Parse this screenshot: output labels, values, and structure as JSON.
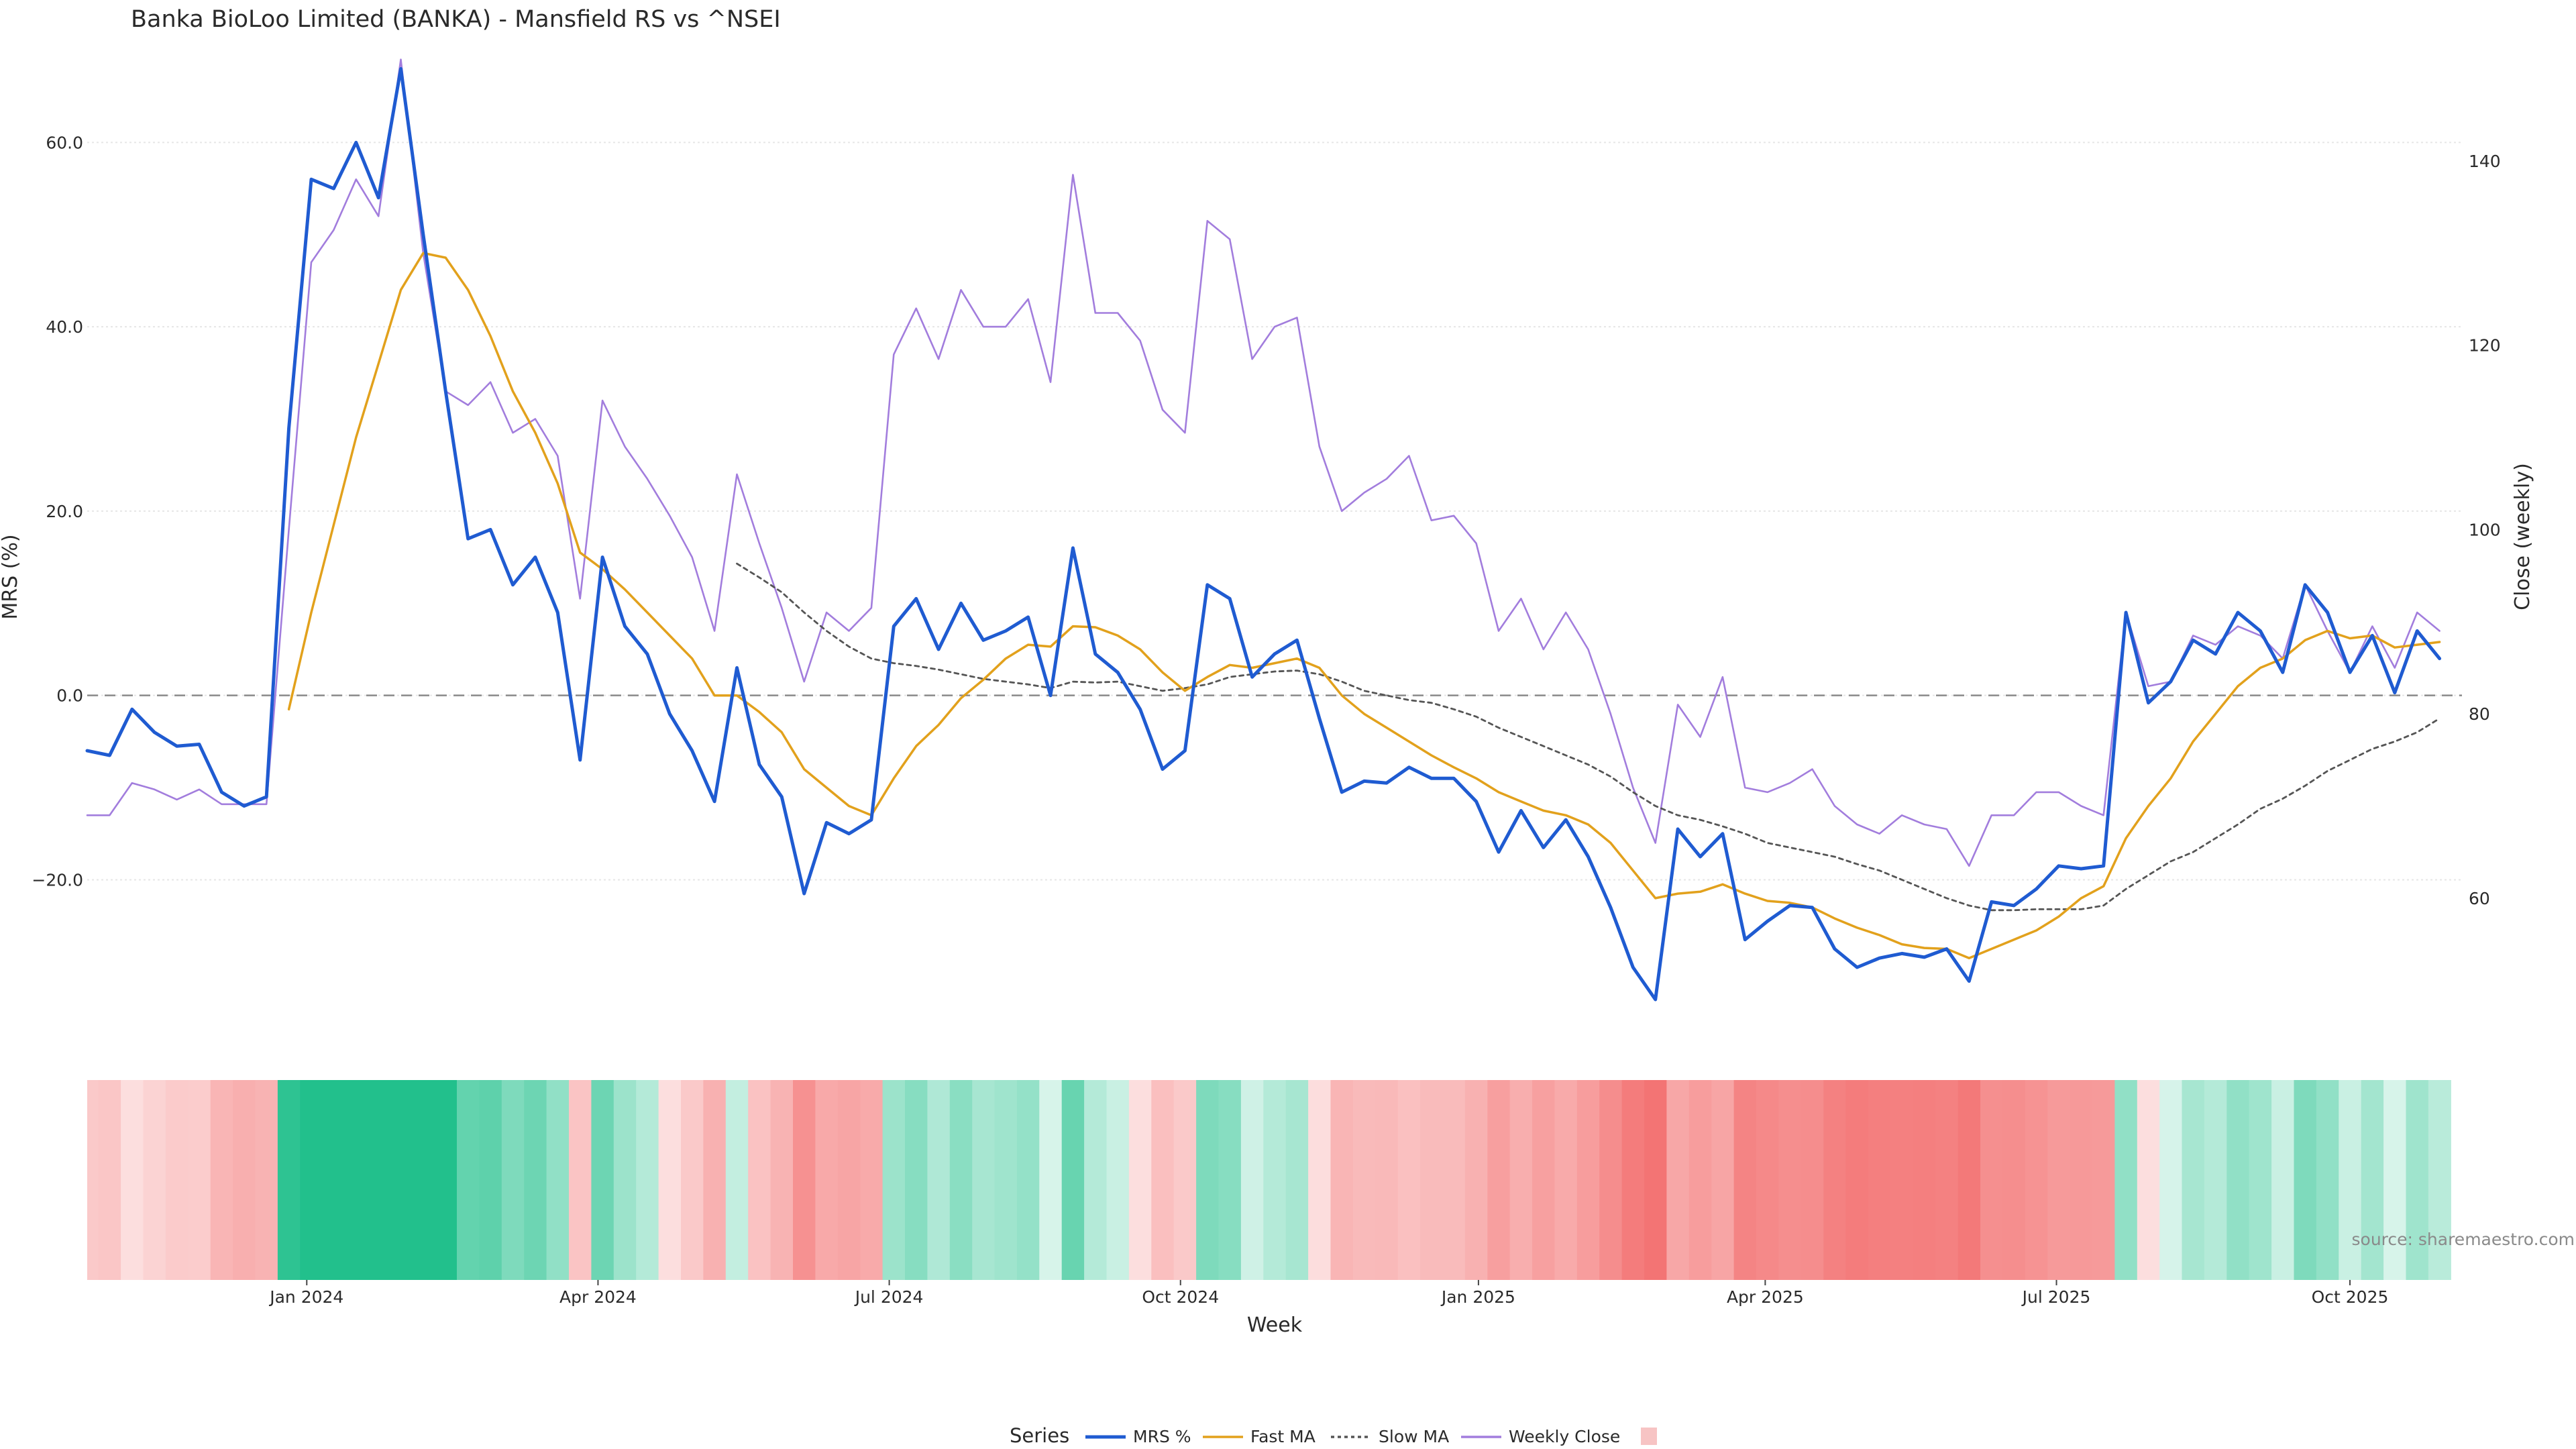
{
  "chart_data": {
    "type": "line",
    "title": "Banka BioLoo Limited (BANKA) - Mansfield RS vs ^NSEI",
    "ylabel": "MRS (%)",
    "y2label": "Close (weekly)",
    "xlabel": "Week",
    "ylim": [
      -37,
      70
    ],
    "y2lim": [
      45,
      152
    ],
    "yticks": [
      60,
      40,
      20,
      0,
      -20
    ],
    "ytick_labels": [
      "60.0",
      "40.0",
      "20.0",
      "0.0",
      "−20.0"
    ],
    "y2ticks": [
      140,
      120,
      100,
      80,
      60
    ],
    "y2tick_labels": [
      "140",
      "120",
      "100",
      "80",
      "60"
    ],
    "x_range": [
      0,
      106
    ],
    "xticks": [
      {
        "label": "Jan 2024",
        "x": 9.8
      },
      {
        "label": "Apr 2024",
        "x": 22.8
      },
      {
        "label": "Jul 2024",
        "x": 35.8
      },
      {
        "label": "Oct 2024",
        "x": 48.8
      },
      {
        "label": "Jan 2025",
        "x": 62.1
      },
      {
        "label": "Apr 2025",
        "x": 74.9
      },
      {
        "label": "Jul 2025",
        "x": 87.9
      },
      {
        "label": "Oct 2025",
        "x": 101.0
      }
    ],
    "x": [
      0,
      1,
      2,
      3,
      4,
      5,
      6,
      7,
      8,
      9,
      10,
      11,
      12,
      13,
      14,
      15,
      16,
      17,
      18,
      19,
      20,
      21,
      22,
      23,
      24,
      25,
      26,
      27,
      28,
      29,
      30,
      31,
      32,
      33,
      34,
      35,
      36,
      37,
      38,
      39,
      40,
      41,
      42,
      43,
      44,
      45,
      46,
      47,
      48,
      49,
      50,
      51,
      52,
      53,
      54,
      55,
      56,
      57,
      58,
      59,
      60,
      61,
      62,
      63,
      64,
      65,
      66,
      67,
      68,
      69,
      70,
      71,
      72,
      73,
      74,
      75,
      76,
      77,
      78,
      79,
      80,
      81,
      82,
      83,
      84,
      85,
      86,
      87,
      88,
      89,
      90,
      91,
      92,
      93,
      94,
      95,
      96,
      97,
      98,
      99,
      100,
      101,
      102,
      103,
      104,
      105
    ],
    "reference_line": 0,
    "series": [
      {
        "name": "MRS %",
        "color": "#1f5bd1",
        "axis": "left",
        "style": "solid",
        "values": [
          -6,
          -6.5,
          -1.5,
          -4,
          -5.5,
          -5.3,
          -10.5,
          -12,
          -11,
          29,
          56,
          55,
          60,
          54,
          68,
          50,
          33,
          17,
          18,
          12,
          15,
          9,
          -7,
          15,
          7.5,
          4.5,
          -2,
          -6,
          -11.5,
          3,
          -7.5,
          -11,
          -21.5,
          -13.8,
          -15,
          -13.5,
          7.5,
          10.5,
          5,
          10,
          6,
          7,
          8.5,
          0,
          16,
          4.5,
          2.5,
          -1.5,
          -8,
          -6,
          12,
          10.5,
          2,
          4.5,
          6,
          -2.5,
          -10.5,
          -9.3,
          -9.5,
          -7.8,
          -9,
          -9,
          -11.5,
          -17,
          -12.5,
          -16.5,
          -13.5,
          -17.5,
          -23,
          -29.5,
          -33,
          -14.5,
          -17.5,
          -15,
          -26.5,
          -24.5,
          -22.8,
          -23,
          -27.5,
          -29.5,
          -28.5,
          -28,
          -28.4,
          -27.5,
          -31,
          -22.4,
          -22.8,
          -21,
          -18.5,
          -18.8,
          -18.5,
          9,
          -0.8,
          1.5,
          6,
          4.5,
          9,
          7,
          2.5,
          12,
          9,
          2.5,
          6.5,
          0.3,
          7,
          4
        ]
      },
      {
        "name": "Fast MA",
        "color": "#e2a11c",
        "axis": "left",
        "style": "solid",
        "values": [
          null,
          null,
          null,
          null,
          null,
          null,
          null,
          null,
          null,
          -1.5,
          9,
          18.5,
          28,
          36,
          44,
          48,
          47.5,
          44,
          39,
          33,
          28.5,
          23,
          15.5,
          13.7,
          11.5,
          9,
          6.5,
          4,
          0,
          0,
          -1.8,
          -4,
          -8,
          -10,
          -12,
          -13,
          -9,
          -5.5,
          -3.2,
          -0.3,
          1.7,
          4,
          5.5,
          5.3,
          7.5,
          7.4,
          6.5,
          5,
          2.5,
          0.5,
          2,
          3.3,
          3,
          3.5,
          4,
          3,
          0,
          -2,
          -3.5,
          -5,
          -6.5,
          -7.8,
          -9,
          -10.5,
          -11.5,
          -12.5,
          -13,
          -14,
          -16,
          -19,
          -22,
          -21.5,
          -21.3,
          -20.5,
          -21.5,
          -22.3,
          -22.5,
          -23,
          -24.2,
          -25.2,
          -26,
          -27,
          -27.4,
          -27.5,
          -28.5,
          -27.5,
          -26.5,
          -25.5,
          -24,
          -22,
          -20.7,
          -15.5,
          -12,
          -9,
          -5,
          -2,
          1,
          3,
          4,
          6,
          7,
          6.2,
          6.5,
          5.2,
          5.5,
          5.8
        ]
      },
      {
        "name": "Slow MA",
        "color": "#555555",
        "axis": "left",
        "style": "dotted",
        "values": [
          null,
          null,
          null,
          null,
          null,
          null,
          null,
          null,
          null,
          null,
          null,
          null,
          null,
          null,
          null,
          null,
          null,
          null,
          null,
          null,
          null,
          null,
          null,
          null,
          null,
          null,
          null,
          null,
          null,
          14.3,
          12.8,
          11.2,
          9,
          7,
          5.3,
          4,
          3.5,
          3.2,
          2.8,
          2.3,
          1.8,
          1.5,
          1.2,
          0.8,
          1.5,
          1.4,
          1.5,
          1,
          0.5,
          0.8,
          1.2,
          2,
          2.3,
          2.6,
          2.7,
          2.3,
          1.5,
          0.5,
          0,
          -0.5,
          -0.8,
          -1.5,
          -2.3,
          -3.5,
          -4.5,
          -5.5,
          -6.5,
          -7.5,
          -8.8,
          -10.5,
          -12,
          -13,
          -13.5,
          -14.2,
          -15,
          -16,
          -16.5,
          -17,
          -17.5,
          -18.3,
          -19,
          -20,
          -21,
          -22,
          -22.8,
          -23.3,
          -23.3,
          -23.2,
          -23.2,
          -23.2,
          -22.8,
          -21,
          -19.5,
          -18,
          -17,
          -15.5,
          -14,
          -12.3,
          -11.2,
          -9.8,
          -8.2,
          -7,
          -5.8,
          -5,
          -4,
          -2.5
        ]
      },
      {
        "name": "Weekly Close",
        "color": "#a27ddd",
        "axis": "right",
        "style": "solid",
        "values": [
          69,
          69,
          72.5,
          71.8,
          70.7,
          71.8,
          70.2,
          70.2,
          70.2,
          100,
          129,
          132.5,
          138,
          134,
          151,
          130,
          115,
          113.5,
          116,
          110.5,
          112,
          108,
          92.5,
          114,
          109,
          105.5,
          101.5,
          97,
          89,
          106,
          98.5,
          91.5,
          83.5,
          91,
          89,
          91.5,
          119,
          124,
          118.5,
          126,
          122,
          122,
          125,
          116,
          138.5,
          123.5,
          123.5,
          120.5,
          113,
          110.5,
          133.5,
          131.5,
          118.5,
          122,
          123,
          109,
          102,
          104,
          105.5,
          108,
          101,
          101.5,
          98.5,
          89,
          92.5,
          87,
          91,
          87,
          80,
          72,
          66,
          81,
          77.5,
          84,
          72,
          71.5,
          72.5,
          74,
          70,
          68,
          67,
          69,
          68,
          67.5,
          63.5,
          69,
          69,
          71.5,
          71.5,
          70,
          69,
          91,
          83,
          83.5,
          88.5,
          87.5,
          89.5,
          88.5,
          86,
          94,
          89,
          84.5,
          89.5,
          85,
          91,
          89
        ]
      }
    ],
    "heat_strip": {
      "low_color": "#f26868",
      "neutral_color": "#ffffff",
      "high_color": "#22c08c",
      "range": [
        -35,
        35
      ]
    },
    "legend": {
      "title": "Series",
      "placement": "bottom-center",
      "entries": [
        "MRS %",
        "Fast MA",
        "Slow MA",
        "Weekly Close",
        ""
      ],
      "heat_swatch_color": "#f7c4c4"
    }
  },
  "source": "source: sharemaestro.com"
}
